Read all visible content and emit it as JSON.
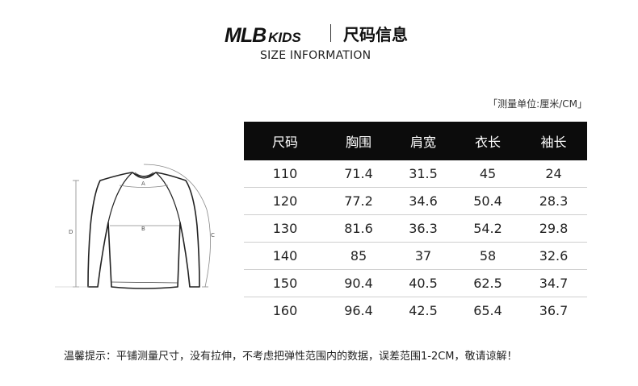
{
  "header": {
    "brand_main": "MLB",
    "brand_sub": "KIDS",
    "title": "尺码信息",
    "subtitle": "SIZE INFORMATION"
  },
  "unit_note": "「测量单位:厘米/CM」",
  "table": {
    "columns": [
      "尺码",
      "胸围",
      "肩宽",
      "衣长",
      "袖长"
    ],
    "rows": [
      [
        "110",
        "71.4",
        "31.5",
        "45",
        "24"
      ],
      [
        "120",
        "77.2",
        "34.6",
        "50.4",
        "28.3"
      ],
      [
        "130",
        "81.6",
        "36.3",
        "54.2",
        "29.8"
      ],
      [
        "140",
        "85",
        "37",
        "58",
        "32.6"
      ],
      [
        "150",
        "90.4",
        "40.5",
        "62.5",
        "34.7"
      ],
      [
        "160",
        "96.4",
        "42.5",
        "65.4",
        "36.7"
      ]
    ]
  },
  "diagram": {
    "label_a": "A",
    "label_b": "B",
    "label_c": "C",
    "label_d": "D"
  },
  "footnote": "温馨提示：平铺测量尺寸，没有拉伸，不考虑把弹性范围内的数据，误差范围1-2CM，敬请谅解！"
}
